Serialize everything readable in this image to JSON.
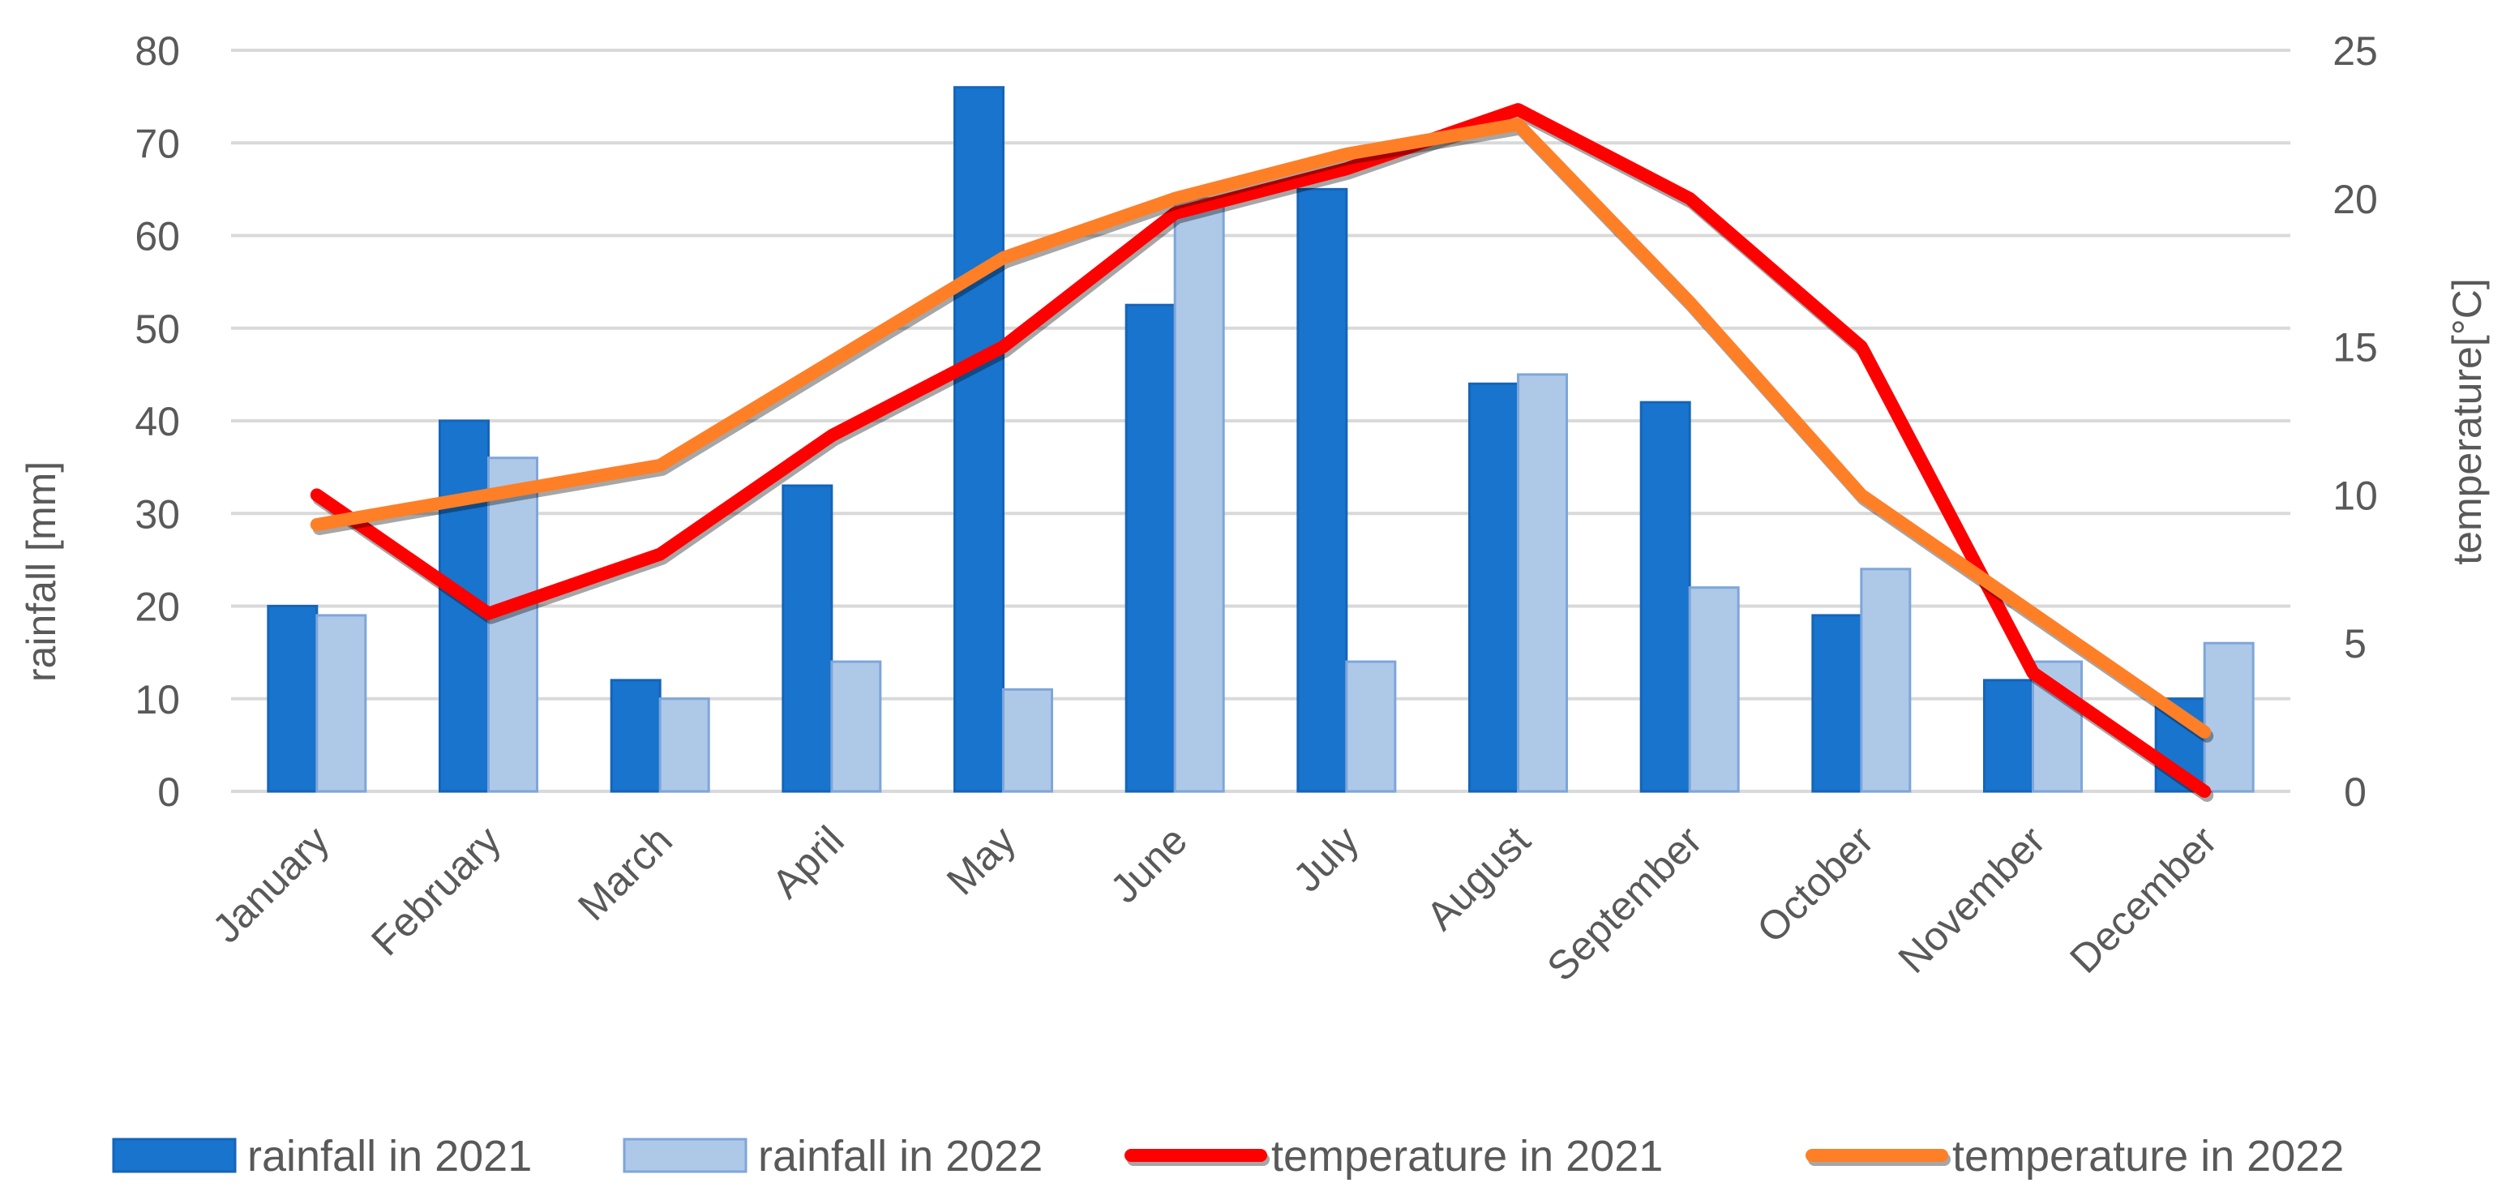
{
  "chart_data": {
    "type": "bar",
    "categories": [
      "January",
      "February",
      "March",
      "April",
      "May",
      "June",
      "July",
      "August",
      "September",
      "October",
      "November",
      "December"
    ],
    "bar_series": [
      {
        "name": "rainfall in 2021",
        "color": "#1874CD",
        "values": [
          20,
          40,
          12,
          33,
          76,
          52.5,
          65,
          44,
          42,
          19,
          12,
          10
        ]
      },
      {
        "name": "rainfall in 2022",
        "color": "#AEC8E8",
        "values": [
          19,
          36,
          10,
          14,
          11,
          64,
          14,
          45,
          22,
          24,
          14,
          16
        ]
      }
    ],
    "line_series": [
      {
        "name": "temperature in 2021",
        "color": "#FF0000",
        "values": [
          10,
          6,
          8,
          12,
          15,
          19.5,
          21,
          23,
          20,
          15,
          4,
          0
        ]
      },
      {
        "name": "temperature in 2022",
        "color": "#FF7F27",
        "values": [
          9,
          10,
          11,
          14.5,
          18,
          20,
          21.5,
          22.5,
          16.5,
          10,
          6,
          2
        ]
      }
    ],
    "y_left": {
      "label": "rainfall [mm]",
      "min": 0,
      "max": 80,
      "ticks": [
        0,
        10,
        20,
        30,
        40,
        50,
        60,
        70,
        80
      ]
    },
    "y_right": {
      "label": "temperature[°C]",
      "min": 0,
      "max": 25,
      "ticks": [
        0,
        5,
        10,
        15,
        20,
        25
      ]
    },
    "grid": true,
    "legend_position": "bottom"
  }
}
